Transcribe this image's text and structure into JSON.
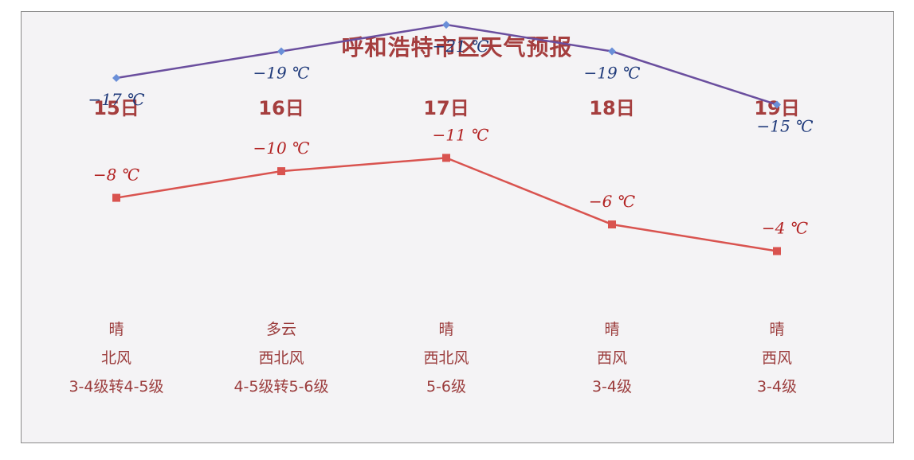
{
  "title": "呼和浩特市区天气预报",
  "colors": {
    "high": "#d9534f",
    "high_label": "#b22222",
    "low": "#6a4e9e",
    "low_label": "#1f3a7a",
    "low_marker": "#6a8fd8",
    "text": "#a53e3e"
  },
  "days": [
    {
      "date": "15日",
      "weather": "晴",
      "wind_dir": "北风",
      "wind_level": "3-4级转4-5级"
    },
    {
      "date": "16日",
      "weather": "多云",
      "wind_dir": "西北风",
      "wind_level": "4-5级转5-6级"
    },
    {
      "date": "17日",
      "weather": "晴",
      "wind_dir": "西北风",
      "wind_level": "5-6级"
    },
    {
      "date": "18日",
      "weather": "晴",
      "wind_dir": "西风",
      "wind_level": "3-4级"
    },
    {
      "date": "19日",
      "weather": "晴",
      "wind_dir": "西风",
      "wind_level": "3-4级"
    }
  ],
  "chart_data": {
    "type": "line",
    "x": [
      "15日",
      "16日",
      "17日",
      "18日",
      "19日"
    ],
    "series": [
      {
        "values": [
          -8,
          -10,
          -11,
          -6,
          -4
        ],
        "labels": [
          "−8 ℃",
          "−10 ℃",
          "−11 ℃",
          "−6 ℃",
          "−4 ℃"
        ]
      },
      {
        "values": [
          -17,
          -19,
          -21,
          -19,
          -15
        ],
        "labels": [
          "−17 ℃",
          "−19 ℃",
          "−21 ℃",
          "−19 ℃",
          "−15 ℃"
        ]
      }
    ],
    "grid": false,
    "legend": "none"
  }
}
